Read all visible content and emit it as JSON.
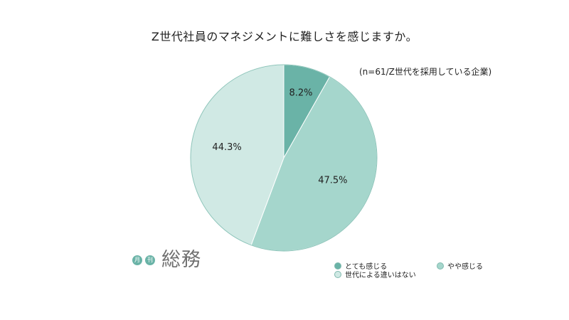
{
  "chart_data": {
    "type": "pie",
    "title": "Z世代社員のマネジメントに難しさを感じますか。",
    "note": "(n=61/Z世代を採用している企業)",
    "categories": [
      "とても感じる",
      "やや感じる",
      "世代による違いはない"
    ],
    "values": [
      8.2,
      47.5,
      44.3
    ],
    "value_labels": [
      "8.2%",
      "47.5%",
      "44.3%"
    ],
    "colors": [
      "#6ab3a7",
      "#a5d6cc",
      "#d0e9e4"
    ],
    "legend_position": "bottom-right"
  },
  "logo": {
    "badge_1": "月",
    "badge_2": "刊",
    "name": "総務"
  }
}
